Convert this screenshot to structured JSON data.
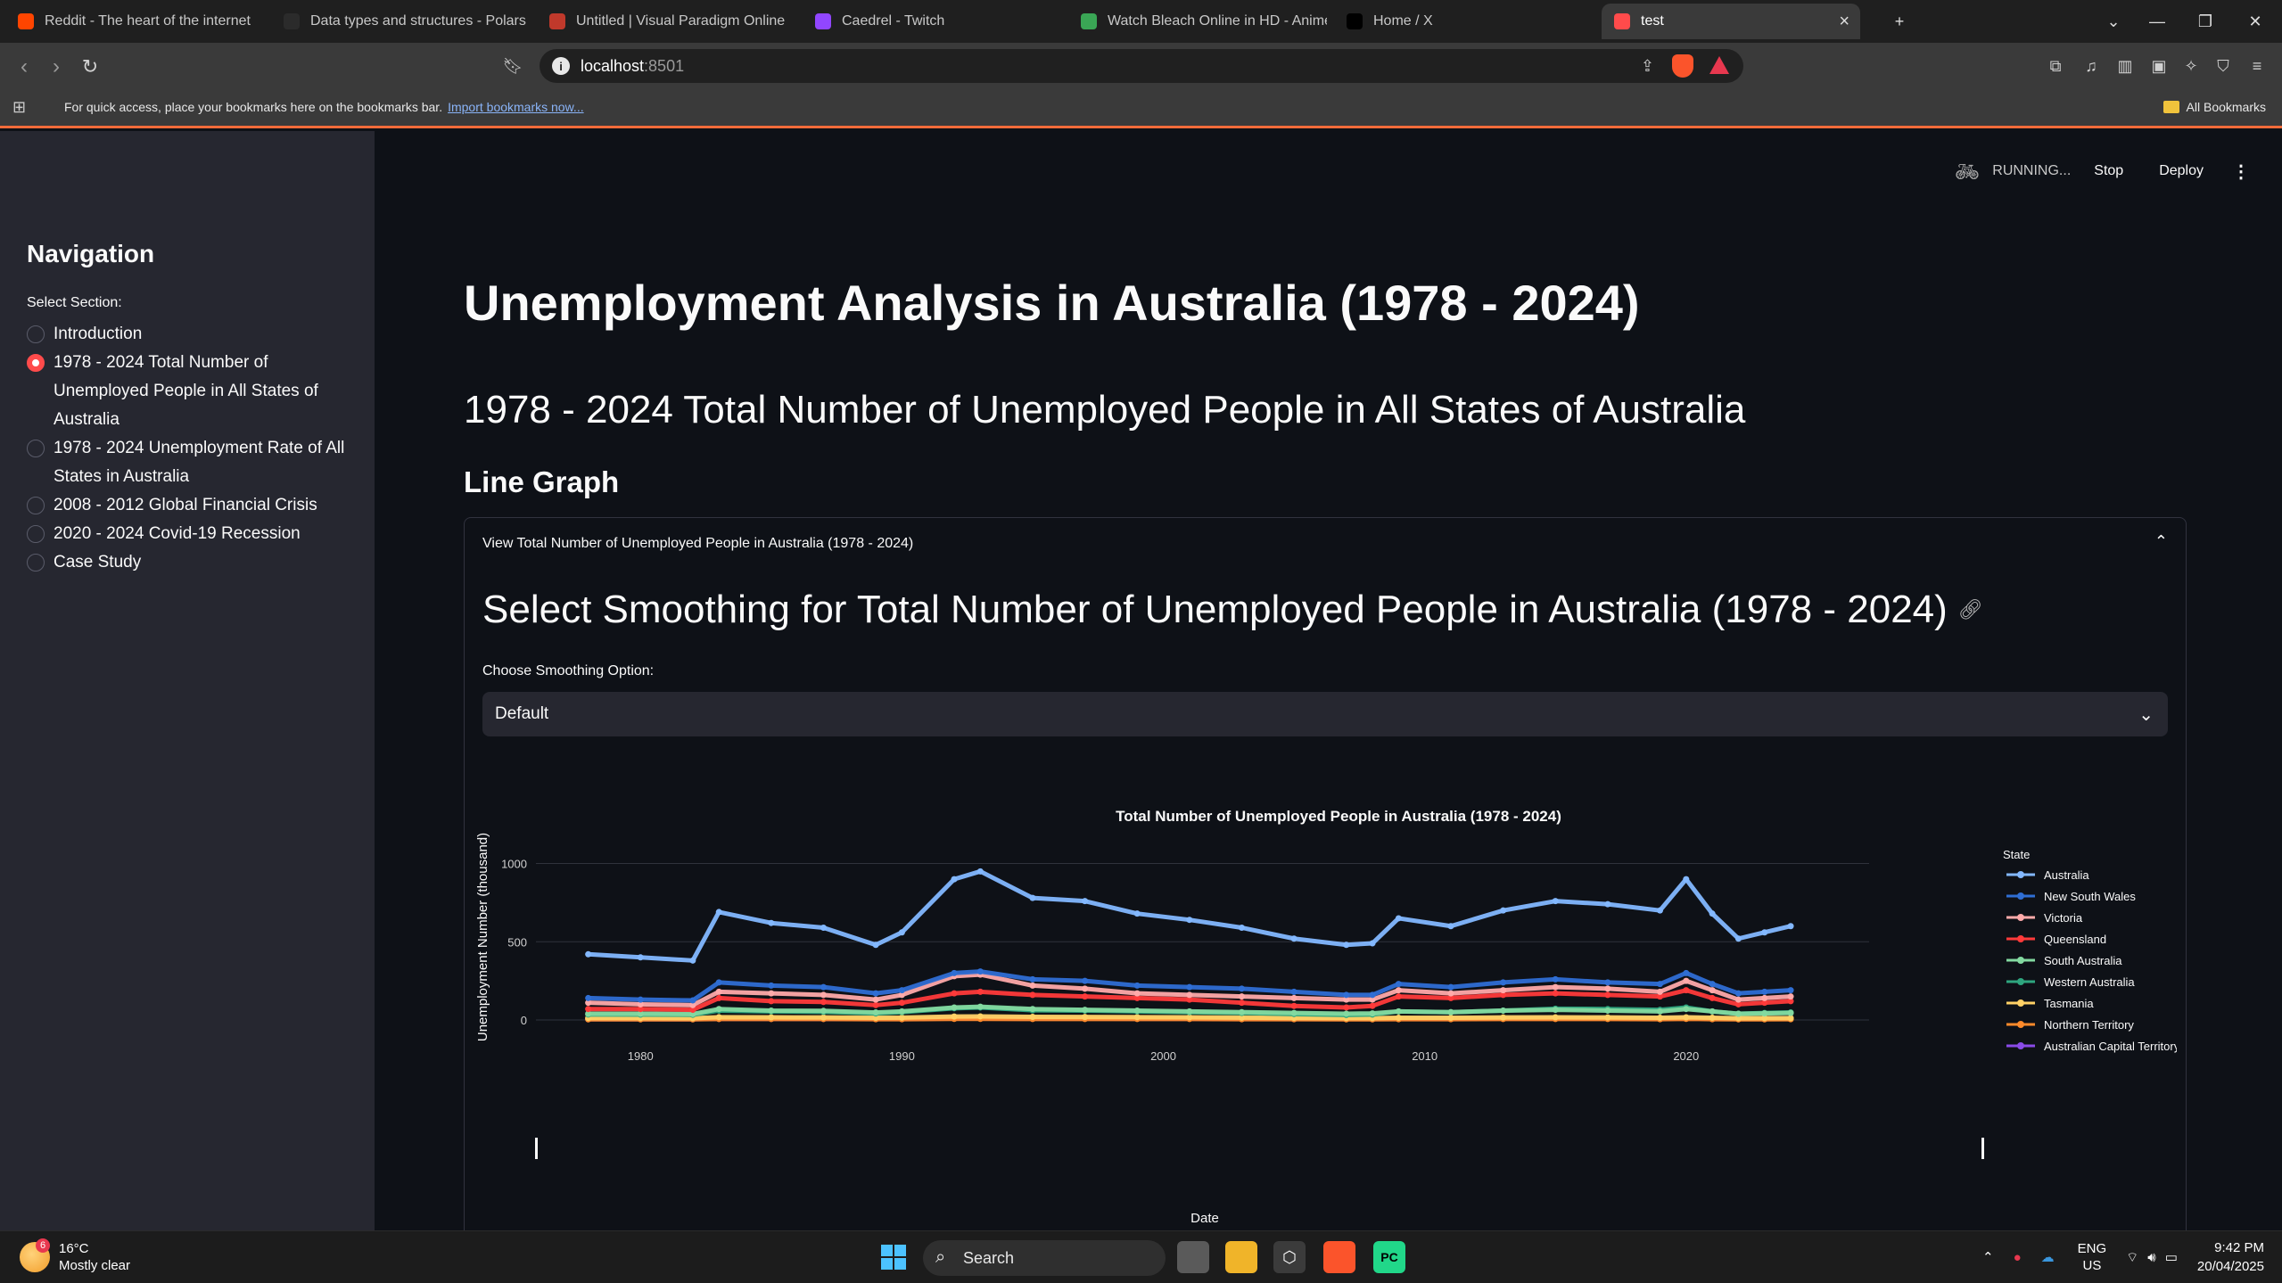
{
  "browser": {
    "tabs": [
      {
        "title": "Reddit - The heart of the internet",
        "icon": "reddit-icon",
        "color": "#ff4500"
      },
      {
        "title": "Data types and structures - Polars u",
        "icon": "polars-icon",
        "color": "#2b2b2b"
      },
      {
        "title": "Untitled | Visual Paradigm Online",
        "icon": "visual-paradigm-icon",
        "color": "#c0392b"
      },
      {
        "title": "Caedrel - Twitch",
        "icon": "twitch-icon",
        "color": "#9146ff"
      },
      {
        "title": "Watch Bleach Online in HD - Anime",
        "icon": "anime-site-icon",
        "color": "#3aa655"
      },
      {
        "title": "Home / X",
        "icon": "x-icon",
        "color": "#000000"
      },
      {
        "title": "test",
        "icon": "streamlit-icon",
        "color": "#ff4b4b"
      }
    ],
    "url_host": "localhost",
    "url_port": ":8501",
    "bookmarks_message": "For quick access, place your bookmarks here on the bookmarks bar.",
    "bookmarks_link": "Import bookmarks now...",
    "all_bookmarks": "All Bookmarks"
  },
  "sidebar": {
    "title": "Navigation",
    "label": "Select Section:",
    "options": [
      {
        "label": "Introduction",
        "checked": false
      },
      {
        "label": "1978 - 2024 Total Number of Unemployed People in All States of Australia",
        "checked": true
      },
      {
        "label": "1978 - 2024 Unemployment Rate of All States in Australia",
        "checked": false
      },
      {
        "label": "2008 - 2012 Global Financial Crisis",
        "checked": false
      },
      {
        "label": "2020 - 2024 Covid-19 Recession",
        "checked": false
      },
      {
        "label": "Case Study",
        "checked": false
      }
    ]
  },
  "header": {
    "status": "RUNNING...",
    "stop": "Stop",
    "deploy": "Deploy"
  },
  "main": {
    "title": "Unemployment Analysis in Australia (1978 - 2024)",
    "subtitle": "1978 - 2024 Total Number of Unemployed People in All States of Australia",
    "section": "Line Graph",
    "expander_label": "View Total Number of Unemployed People in Australia (1978 - 2024)",
    "expander_heading": "Select Smoothing for Total Number of Unemployed People in Australia (1978 - 2024)",
    "select_label": "Choose Smoothing Option:",
    "select_value": "Default"
  },
  "chart_data": {
    "type": "line",
    "title": "Total Number of Unemployed People in Australia (1978 - 2024)",
    "xlabel": "Date",
    "ylabel": "Unemployment Number (thousand)",
    "legend_title": "State",
    "legend_position": "right",
    "grid": true,
    "xlim": [
      1976,
      2027
    ],
    "ylim": [
      -40,
      1100
    ],
    "x_ticks": [
      1980,
      1990,
      2000,
      2010,
      2020
    ],
    "y_ticks": [
      0,
      500,
      1000
    ],
    "x": [
      1978,
      1980,
      1982,
      1983,
      1985,
      1987,
      1989,
      1990,
      1992,
      1993,
      1995,
      1997,
      1999,
      2001,
      2003,
      2005,
      2007,
      2008,
      2009,
      2011,
      2013,
      2015,
      2017,
      2019,
      2020,
      2021,
      2022,
      2023,
      2024
    ],
    "series": [
      {
        "name": "Australia",
        "color": "#83b8ff",
        "values": [
          420,
          400,
          380,
          690,
          620,
          590,
          480,
          560,
          900,
          950,
          780,
          760,
          680,
          640,
          590,
          520,
          480,
          490,
          650,
          600,
          700,
          760,
          740,
          700,
          900,
          680,
          520,
          560,
          600
        ]
      },
      {
        "name": "New South Wales",
        "color": "#2f6ed4",
        "values": [
          140,
          130,
          125,
          240,
          220,
          210,
          170,
          190,
          300,
          310,
          260,
          250,
          220,
          210,
          200,
          180,
          160,
          160,
          230,
          210,
          240,
          260,
          240,
          230,
          300,
          230,
          170,
          180,
          190
        ]
      },
      {
        "name": "Victoria",
        "color": "#ffaaaa",
        "values": [
          110,
          100,
          95,
          180,
          170,
          160,
          130,
          160,
          280,
          290,
          220,
          200,
          170,
          160,
          150,
          140,
          130,
          130,
          190,
          170,
          190,
          210,
          200,
          180,
          250,
          190,
          130,
          140,
          150
        ]
      },
      {
        "name": "Queensland",
        "color": "#ff3a3a",
        "values": [
          70,
          70,
          65,
          140,
          120,
          115,
          95,
          110,
          170,
          180,
          160,
          150,
          140,
          130,
          110,
          90,
          80,
          90,
          150,
          140,
          160,
          170,
          160,
          150,
          190,
          140,
          100,
          110,
          120
        ]
      },
      {
        "name": "South Australia",
        "color": "#83d9a0",
        "values": [
          40,
          40,
          38,
          70,
          60,
          58,
          48,
          55,
          80,
          85,
          70,
          65,
          60,
          55,
          50,
          45,
          40,
          42,
          55,
          50,
          60,
          65,
          60,
          55,
          70,
          55,
          40,
          42,
          45
        ]
      },
      {
        "name": "Western Australia",
        "color": "#2ea67f",
        "values": [
          35,
          34,
          33,
          60,
          55,
          52,
          42,
          50,
          75,
          80,
          62,
          60,
          55,
          50,
          45,
          38,
          32,
          35,
          55,
          50,
          60,
          72,
          70,
          65,
          80,
          55,
          40,
          45,
          48
        ]
      },
      {
        "name": "Tasmania",
        "color": "#ffd166",
        "values": [
          12,
          12,
          11,
          18,
          17,
          16,
          14,
          15,
          22,
          23,
          20,
          19,
          18,
          17,
          15,
          13,
          12,
          12,
          14,
          14,
          16,
          17,
          16,
          14,
          17,
          14,
          11,
          12,
          12
        ]
      },
      {
        "name": "Northern Territory",
        "color": "#ff8a2b",
        "values": [
          4,
          4,
          4,
          6,
          6,
          6,
          5,
          5,
          7,
          7,
          6,
          6,
          6,
          6,
          5,
          5,
          4,
          4,
          5,
          5,
          6,
          6,
          6,
          5,
          7,
          5,
          4,
          4,
          5
        ]
      },
      {
        "name": "Australian Capital Territory",
        "color": "#8a4be8",
        "values": [
          5,
          5,
          5,
          7,
          7,
          7,
          6,
          7,
          9,
          10,
          9,
          9,
          8,
          8,
          7,
          6,
          6,
          6,
          8,
          8,
          9,
          10,
          10,
          9,
          12,
          9,
          7,
          8,
          8
        ]
      }
    ]
  },
  "taskbar": {
    "temperature": "16°C",
    "weather": "Mostly clear",
    "weather_badge": "6",
    "search": "Search",
    "lang": "ENG",
    "region": "US",
    "time": "9:42 PM",
    "date": "20/04/2025"
  }
}
